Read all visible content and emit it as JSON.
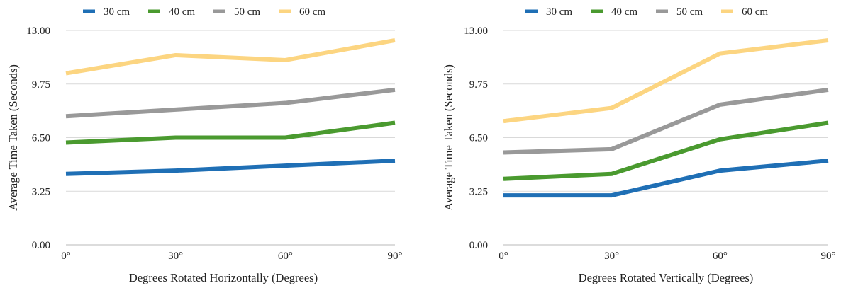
{
  "chart_data": [
    {
      "type": "line",
      "title": "",
      "xlabel": "Degrees Rotated Horizontally (Degrees)",
      "ylabel": "Average Time Taken (Seconds)",
      "categories": [
        "0°",
        "30°",
        "60°",
        "90°"
      ],
      "ylim": [
        0,
        13
      ],
      "yticks": [
        "0.00",
        "3.25",
        "6.50",
        "9.75",
        "13.00"
      ],
      "grid": true,
      "legend_position": "top",
      "series": [
        {
          "name": "30 cm",
          "color": "#1f6fb5",
          "values": [
            4.3,
            4.5,
            4.8,
            5.1
          ]
        },
        {
          "name": "40 cm",
          "color": "#4a9a2f",
          "values": [
            6.2,
            6.5,
            6.5,
            7.4
          ]
        },
        {
          "name": "50 cm",
          "color": "#999999",
          "values": [
            7.8,
            8.2,
            8.6,
            9.4
          ]
        },
        {
          "name": "60 cm",
          "color": "#fcd581",
          "values": [
            10.4,
            11.5,
            11.2,
            12.4
          ]
        }
      ]
    },
    {
      "type": "line",
      "title": "",
      "xlabel": "Degrees Rotated Vertically (Degrees)",
      "ylabel": "Average Time Taken (Seconds)",
      "categories": [
        "0°",
        "30°",
        "60°",
        "90°"
      ],
      "ylim": [
        0,
        13
      ],
      "yticks": [
        "0.00",
        "3.25",
        "6.50",
        "9.75",
        "13.00"
      ],
      "grid": true,
      "legend_position": "top",
      "series": [
        {
          "name": "30 cm",
          "color": "#1f6fb5",
          "values": [
            3.0,
            3.0,
            4.5,
            5.1
          ]
        },
        {
          "name": "40 cm",
          "color": "#4a9a2f",
          "values": [
            4.0,
            4.3,
            6.4,
            7.4
          ]
        },
        {
          "name": "50 cm",
          "color": "#999999",
          "values": [
            5.6,
            5.8,
            8.5,
            9.4
          ]
        },
        {
          "name": "60 cm",
          "color": "#fcd581",
          "values": [
            7.5,
            8.3,
            11.6,
            12.4
          ]
        }
      ]
    }
  ]
}
